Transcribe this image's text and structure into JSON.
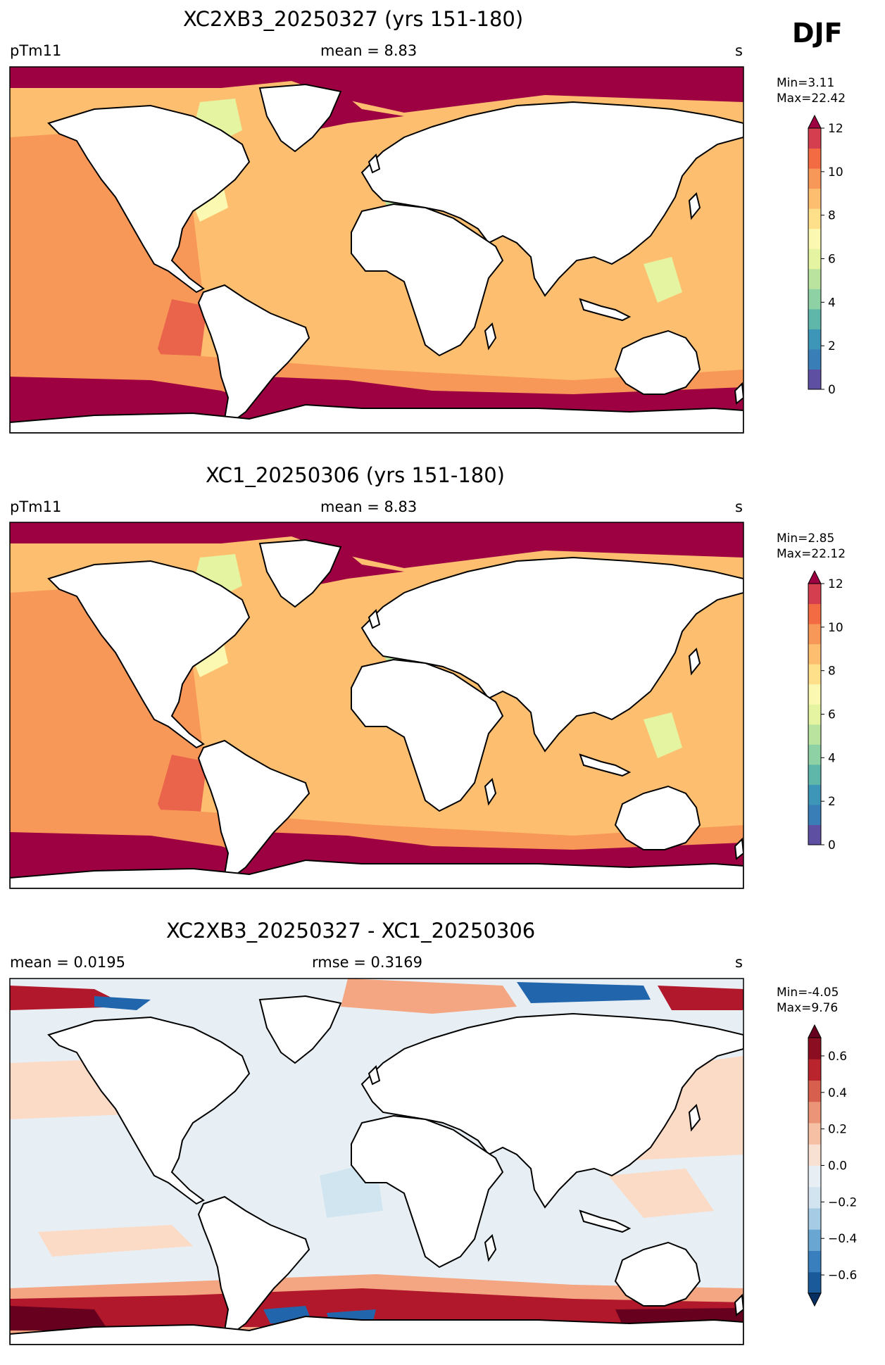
{
  "season": "DJF",
  "panels": [
    {
      "title": "XC2XB3_20250327 (yrs 151-180)",
      "left_label": "pTm11",
      "center_label": "mean = 8.83",
      "right_label": "s",
      "min_label": "Min=3.11",
      "max_label": "Max=22.42",
      "colorbar": {
        "ticks": [
          "0",
          "2",
          "4",
          "6",
          "8",
          "10",
          "12"
        ],
        "colors": [
          "#5e4fa2",
          "#3a7eb8",
          "#3d95b8",
          "#5eb7a8",
          "#8ed1a4",
          "#bae3a0",
          "#e4f4a0",
          "#fbf8b1",
          "#fee08b",
          "#fdbf6f",
          "#f89858",
          "#f26b43",
          "#d53e4f"
        ],
        "extend_color": "#9e0142"
      }
    },
    {
      "title": "XC1_20250306 (yrs 151-180)",
      "left_label": "pTm11",
      "center_label": "mean = 8.83",
      "right_label": "s",
      "min_label": "Min=2.85",
      "max_label": "Max=22.12",
      "colorbar": {
        "ticks": [
          "0",
          "2",
          "4",
          "6",
          "8",
          "10",
          "12"
        ],
        "colors": [
          "#5e4fa2",
          "#3a7eb8",
          "#3d95b8",
          "#5eb7a8",
          "#8ed1a4",
          "#bae3a0",
          "#e4f4a0",
          "#fbf8b1",
          "#fee08b",
          "#fdbf6f",
          "#f89858",
          "#f26b43",
          "#d53e4f"
        ],
        "extend_color": "#9e0142"
      }
    },
    {
      "title": "XC2XB3_20250327 - XC1_20250306",
      "left_label": "mean = 0.0195",
      "center_label": "rmse = 0.3169",
      "right_label": "s",
      "min_label": "Min=-4.05",
      "max_label": "Max=9.76",
      "colorbar": {
        "ticks": [
          "−0.6",
          "−0.4",
          "−0.2",
          "0.0",
          "0.2",
          "0.4",
          "0.6"
        ],
        "colors": [
          "#1a5a9a",
          "#3a7fbd",
          "#6aa6d2",
          "#a5cce4",
          "#d2e4f0",
          "#e7eff4",
          "#f8e0d2",
          "#f6c0a4",
          "#eb9478",
          "#d6604d",
          "#b9242d",
          "#8a0d21"
        ],
        "extend_low": "#053061",
        "extend_high": "#67001f"
      }
    }
  ],
  "map_colors": {
    "ocean_main": "#fdbf6f",
    "ocean_pacific": "#f89858",
    "ocean_high": "#9e0142",
    "ocean_red": "#e9644a",
    "coastal_low": "#e4f4a0",
    "coastal_mid": "#bae3a0",
    "coastal_pale": "#fbf8b1",
    "land": "#ffffff",
    "diff_base": "#e7eff4",
    "diff_pos_light": "#fbdac6",
    "diff_pos_mid": "#f4a582",
    "diff_neg_light": "#d1e5f0",
    "diff_red": "#b2182b",
    "diff_dark": "#67001f",
    "diff_blue": "#2166ac"
  }
}
